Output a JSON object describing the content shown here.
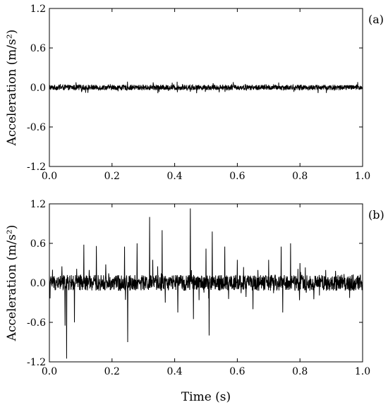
{
  "figure": {
    "xlabel": "Time (s)"
  },
  "chart_data": [
    {
      "type": "line",
      "panel_label": "(a)",
      "ylabel": "Acceleration (m/s²)",
      "xlim": [
        0.0,
        1.0
      ],
      "ylim": [
        -1.2,
        1.2
      ],
      "xticks": [
        "0.0",
        "0.2",
        "0.4",
        "0.6",
        "0.8",
        "1.0"
      ],
      "yticks": [
        "1.2",
        "0.6",
        "0.0",
        "-0.6",
        "-1.2"
      ],
      "grid": false,
      "series": [
        {
          "color": "#000000",
          "noise_amplitude": 0.04,
          "spikes": []
        }
      ]
    },
    {
      "type": "line",
      "panel_label": "(b)",
      "ylabel": "Acceleration (m/s²)",
      "xlim": [
        0.0,
        1.0
      ],
      "ylim": [
        -1.2,
        1.2
      ],
      "xticks": [
        "0.0",
        "0.2",
        "0.4",
        "0.6",
        "0.8",
        "1.0"
      ],
      "yticks": [
        "1.2",
        "0.6",
        "0.0",
        "-0.6",
        "-1.2"
      ],
      "grid": false,
      "series": [
        {
          "color": "#000000",
          "noise_amplitude": 0.12,
          "spikes": [
            {
              "x": 0.01,
              "y": 0.2
            },
            {
              "x": 0.04,
              "y": 0.25
            },
            {
              "x": 0.05,
              "y": -0.65
            },
            {
              "x": 0.055,
              "y": -1.15
            },
            {
              "x": 0.08,
              "y": -0.6
            },
            {
              "x": 0.11,
              "y": 0.58
            },
            {
              "x": 0.15,
              "y": 0.56
            },
            {
              "x": 0.18,
              "y": 0.28
            },
            {
              "x": 0.24,
              "y": 0.55
            },
            {
              "x": 0.25,
              "y": -0.9
            },
            {
              "x": 0.28,
              "y": 0.6
            },
            {
              "x": 0.32,
              "y": 1.0
            },
            {
              "x": 0.33,
              "y": 0.35
            },
            {
              "x": 0.36,
              "y": 0.8
            },
            {
              "x": 0.37,
              "y": -0.3
            },
            {
              "x": 0.41,
              "y": -0.45
            },
            {
              "x": 0.45,
              "y": 1.13
            },
            {
              "x": 0.46,
              "y": -0.55
            },
            {
              "x": 0.5,
              "y": 0.52
            },
            {
              "x": 0.51,
              "y": -0.8
            },
            {
              "x": 0.52,
              "y": 0.78
            },
            {
              "x": 0.56,
              "y": 0.55
            },
            {
              "x": 0.6,
              "y": 0.35
            },
            {
              "x": 0.65,
              "y": -0.4
            },
            {
              "x": 0.7,
              "y": 0.35
            },
            {
              "x": 0.74,
              "y": 0.55
            },
            {
              "x": 0.745,
              "y": -0.45
            },
            {
              "x": 0.77,
              "y": 0.6
            },
            {
              "x": 0.8,
              "y": 0.3
            },
            {
              "x": 0.82,
              "y": -0.15
            },
            {
              "x": 0.9,
              "y": -0.1
            },
            {
              "x": 0.97,
              "y": 0.12
            }
          ]
        }
      ]
    }
  ]
}
